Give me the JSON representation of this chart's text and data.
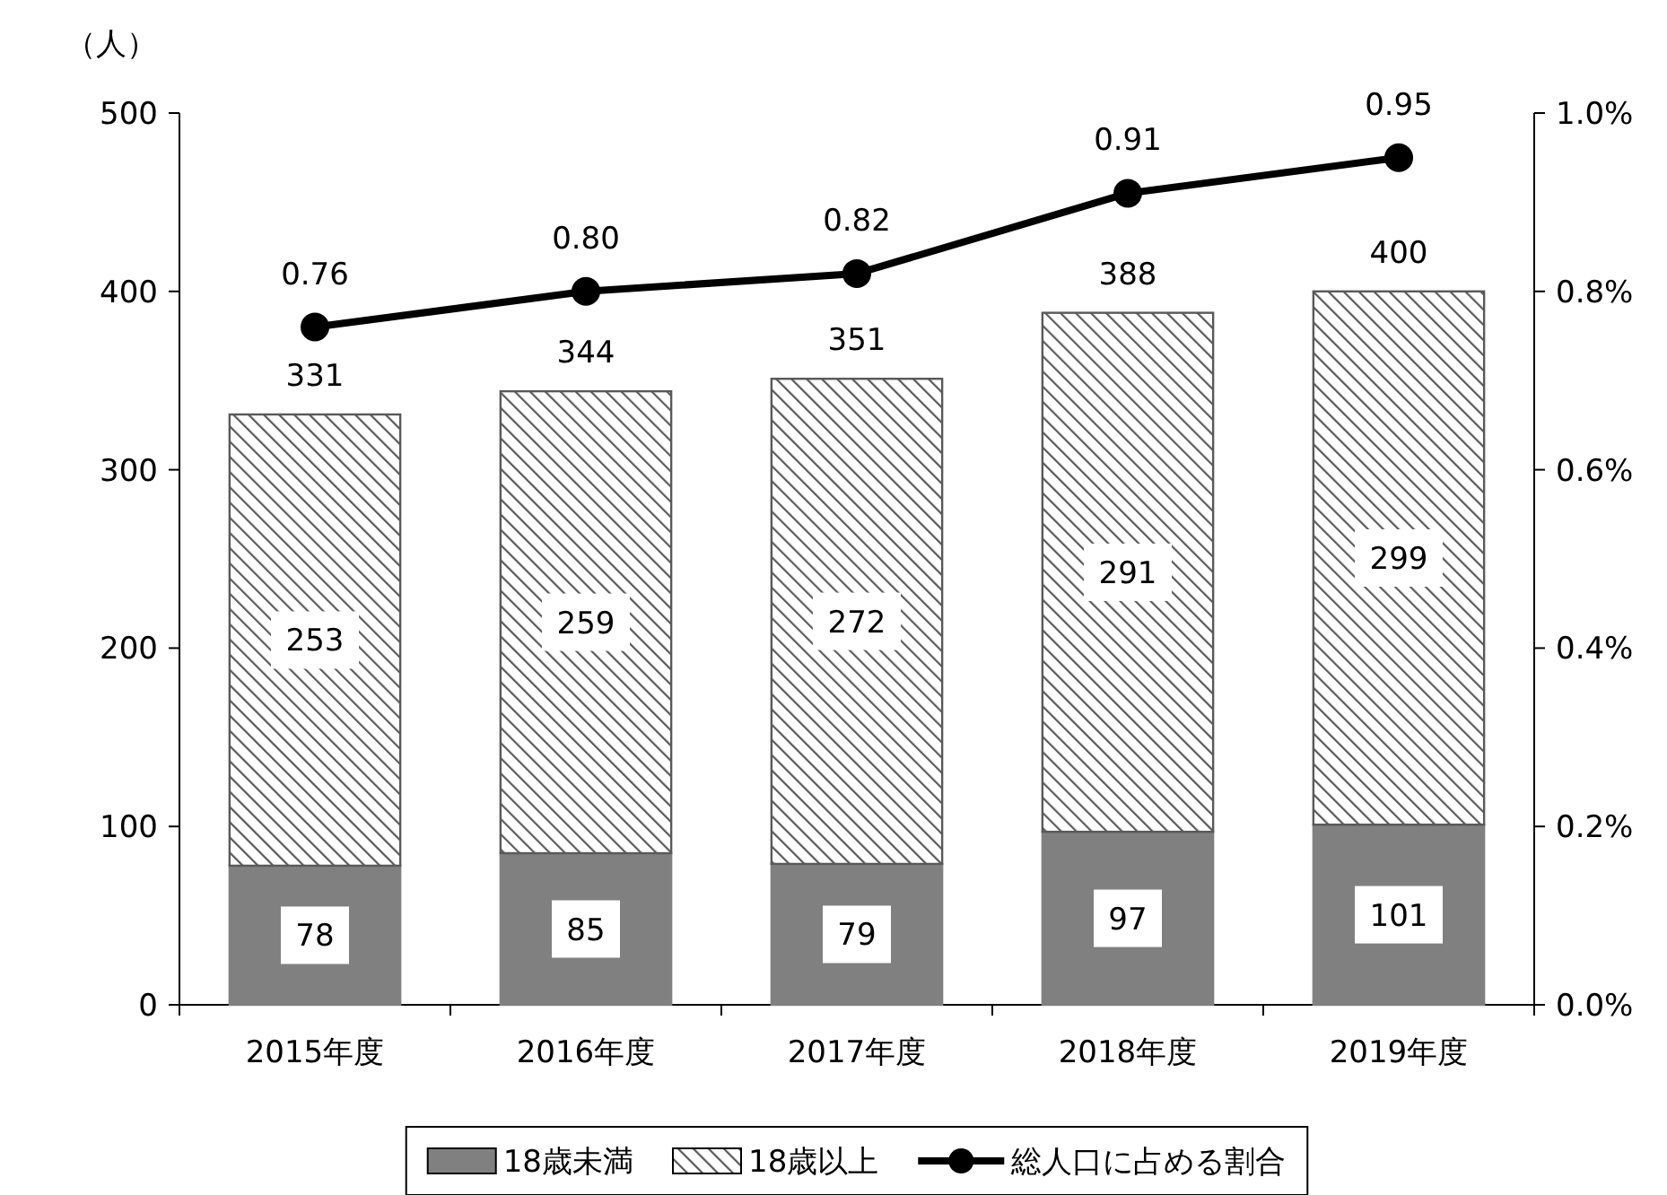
{
  "chart_data": {
    "type": "bar",
    "stacked": true,
    "ylabel": "（人）",
    "categories": [
      "2015年度",
      "2016年度",
      "2017年度",
      "2018年度",
      "2019年度"
    ],
    "series": [
      {
        "name": "18歳未満",
        "color": "#808080",
        "values": [
          78,
          85,
          79,
          97,
          101
        ]
      },
      {
        "name": "18歳以上",
        "color": "#595959",
        "values": [
          253,
          259,
          272,
          291,
          299
        ]
      },
      {
        "name": "総人口に占める割合",
        "type": "line",
        "axis": "y2",
        "color": "#000000",
        "marker": "circle",
        "values": [
          0.76,
          0.8,
          0.82,
          0.91,
          0.95
        ],
        "value_labels": [
          "0.76",
          "0.80",
          "0.82",
          "0.91",
          "0.95"
        ]
      }
    ],
    "data_labels": true,
    "totals": [
      "331",
      "344",
      "351",
      "388",
      "400"
    ],
    "ylim": [
      0,
      500
    ],
    "yticks": [
      0,
      100,
      200,
      300,
      400,
      500
    ],
    "y2lim": [
      0,
      1.0
    ],
    "y2ticks": [
      {
        "value": 0,
        "label": "0.0%"
      },
      {
        "value": 0.2,
        "label": "0.2%"
      },
      {
        "value": 0.4,
        "label": "0.4%"
      },
      {
        "value": 0.6,
        "label": "0.6%"
      },
      {
        "value": 0.8,
        "label": "0.8%"
      },
      {
        "value": 1.0,
        "label": "1.0%"
      }
    ],
    "legend": "bottom",
    "grid": false
  }
}
